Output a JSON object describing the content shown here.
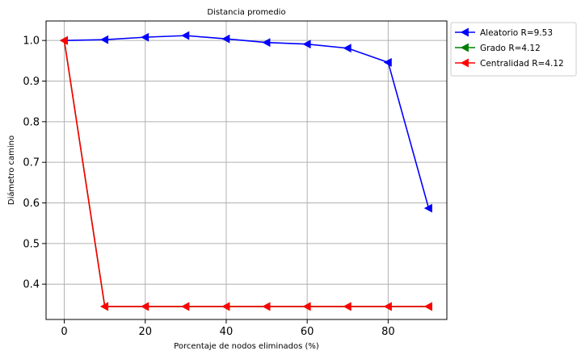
{
  "chart_data": {
    "type": "line",
    "title": "Distancia promedio",
    "xlabel": "Porcentaje de nodos eliminados (%)",
    "ylabel": "Diámetro camino",
    "xlim": [
      -4.5,
      94.5
    ],
    "ylim": [
      0.313,
      1.048
    ],
    "xticks": [
      0,
      20,
      40,
      60,
      80
    ],
    "yticks": [
      0.4,
      0.5,
      0.6,
      0.7,
      0.8,
      0.9,
      1.0
    ],
    "xtick_labels": [
      "0",
      "20",
      "40",
      "60",
      "80"
    ],
    "ytick_labels": [
      "0.4",
      "0.5",
      "0.6",
      "0.7",
      "0.8",
      "0.9",
      "1.0"
    ],
    "grid": true,
    "legend_position": "outside-upper-right",
    "marker": "left-triangle",
    "series": [
      {
        "name": "Aleatorio R=9.53",
        "color": "#0000ff",
        "x": [
          0,
          10,
          20,
          30,
          40,
          50,
          60,
          70,
          80,
          90
        ],
        "y": [
          1.0,
          1.002,
          1.008,
          1.012,
          1.004,
          0.995,
          0.991,
          0.981,
          0.946,
          0.587
        ]
      },
      {
        "name": "Grado R=4.12",
        "color": "#008000",
        "x": [
          0,
          10,
          20,
          30,
          40,
          50,
          60,
          70,
          80,
          90
        ],
        "y": [
          1.0,
          0.345,
          0.345,
          0.345,
          0.345,
          0.345,
          0.345,
          0.345,
          0.345,
          0.345
        ]
      },
      {
        "name": "Centralidad R=4.12",
        "color": "#ff0000",
        "x": [
          0,
          10,
          20,
          30,
          40,
          50,
          60,
          70,
          80,
          90
        ],
        "y": [
          1.0,
          0.345,
          0.345,
          0.345,
          0.345,
          0.345,
          0.345,
          0.345,
          0.345,
          0.345
        ]
      }
    ]
  }
}
